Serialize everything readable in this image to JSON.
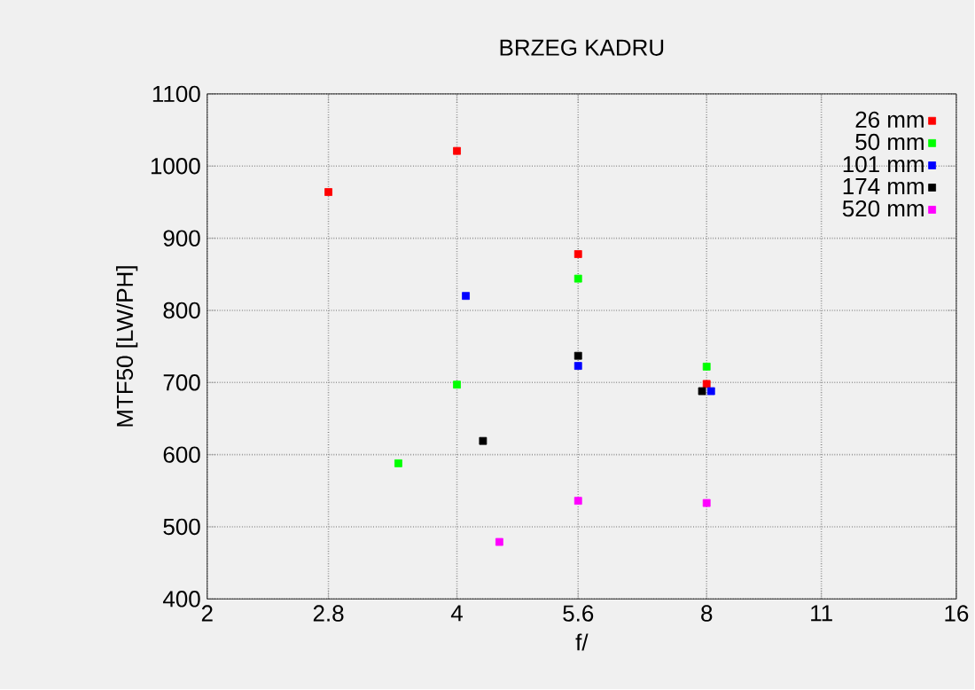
{
  "chart_data": {
    "type": "scatter",
    "title": "BRZEG KADRU",
    "xlabel": "f/",
    "ylabel": "MTF50 [LW/PH]",
    "log": "x",
    "grid": true,
    "legend": "top right",
    "marker": "square",
    "xlim": [
      2,
      16
    ],
    "xticks": [
      2,
      2.8,
      4,
      5.6,
      8,
      11,
      16
    ],
    "ylim": [
      400,
      1100
    ],
    "yticks": [
      400,
      500,
      600,
      700,
      800,
      900,
      1000,
      1100
    ],
    "series": [
      {
        "name": "26 mm",
        "color": "#ff0000",
        "x": [
          2.8,
          4,
          5.6,
          8
        ],
        "values": [
          964,
          1021,
          878,
          698
        ]
      },
      {
        "name": "50 mm",
        "color": "#00ff00",
        "x": [
          3.4,
          4,
          5.6,
          8
        ],
        "values": [
          588,
          697,
          844,
          722
        ]
      },
      {
        "name": "101 mm",
        "color": "#0000ff",
        "x": [
          4.1,
          5.6,
          8.1
        ],
        "values": [
          820,
          723,
          688
        ]
      },
      {
        "name": "174 mm",
        "color": "#000000",
        "x": [
          4.3,
          5.6,
          7.9
        ],
        "values": [
          619,
          737,
          688
        ]
      },
      {
        "name": "520 mm",
        "color": "#ff00ff",
        "x": [
          4.5,
          5.6,
          8
        ],
        "values": [
          479,
          536,
          533
        ]
      }
    ]
  }
}
